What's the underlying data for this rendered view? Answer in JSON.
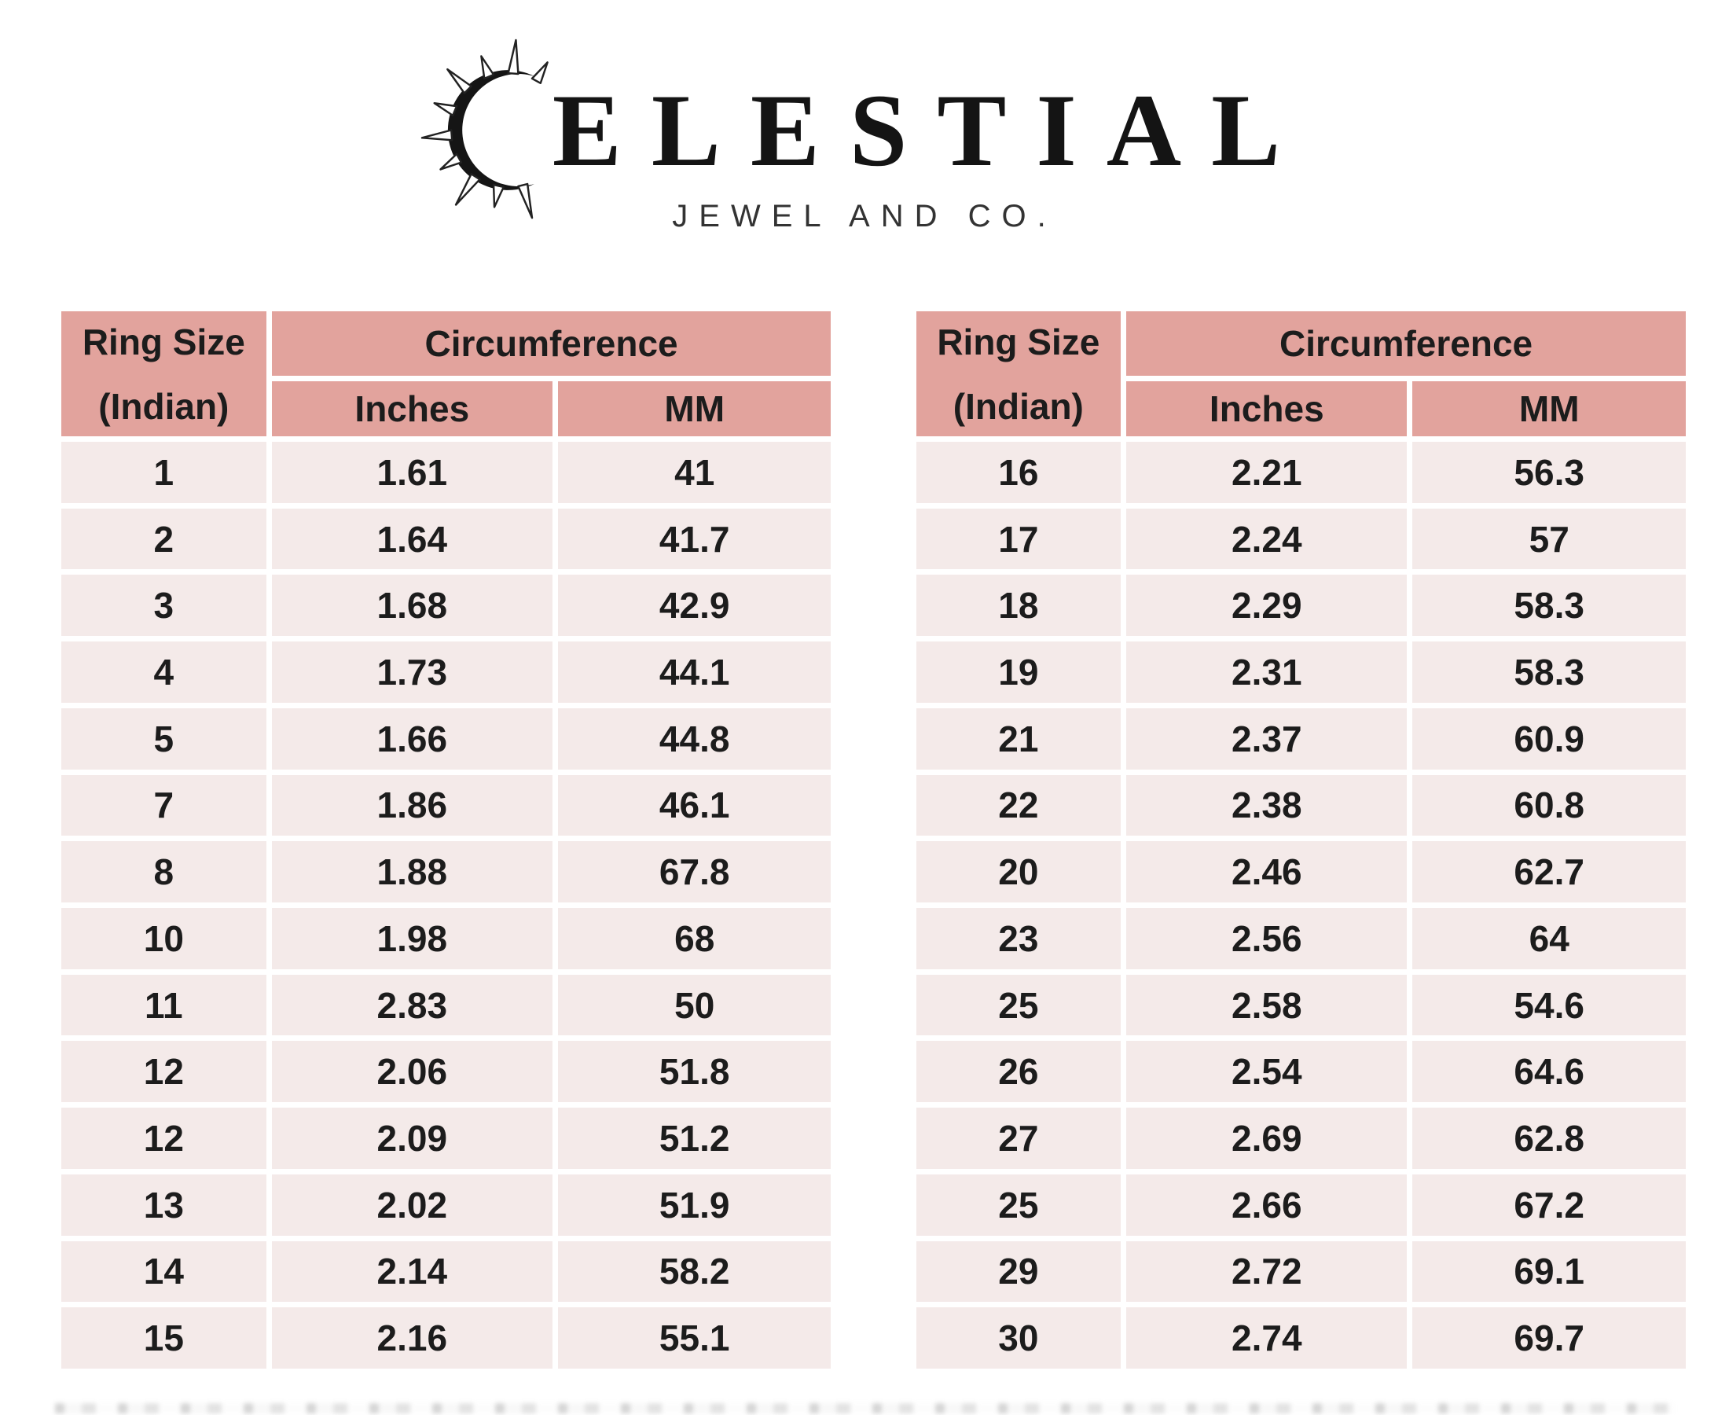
{
  "brand": {
    "name_initial_glyph": "crescent-sun (stylized C)",
    "name_rest": "ELESTIAL",
    "subtitle": "JEWEL AND CO."
  },
  "headers": {
    "ring_size_line1": "Ring Size",
    "ring_size_line2": "(Indian)",
    "circumference": "Circumference",
    "inches": "Inches",
    "mm": "MM"
  },
  "left_table": {
    "rows": [
      [
        "1",
        "1.61",
        "41"
      ],
      [
        "2",
        "1.64",
        "41.7"
      ],
      [
        "3",
        "1.68",
        "42.9"
      ],
      [
        "4",
        "1.73",
        "44.1"
      ],
      [
        "5",
        "1.66",
        "44.8"
      ],
      [
        "7",
        "1.86",
        "46.1"
      ],
      [
        "8",
        "1.88",
        "67.8"
      ],
      [
        "10",
        "1.98",
        "68"
      ],
      [
        "11",
        "2.83",
        "50"
      ],
      [
        "12",
        "2.06",
        "51.8"
      ],
      [
        "12",
        "2.09",
        "51.2"
      ],
      [
        "13",
        "2.02",
        "51.9"
      ],
      [
        "14",
        "2.14",
        "58.2"
      ],
      [
        "15",
        "2.16",
        "55.1"
      ]
    ]
  },
  "right_table": {
    "rows": [
      [
        "16",
        "2.21",
        "56.3"
      ],
      [
        "17",
        "2.24",
        "57"
      ],
      [
        "18",
        "2.29",
        "58.3"
      ],
      [
        "19",
        "2.31",
        "58.3"
      ],
      [
        "21",
        "2.37",
        "60.9"
      ],
      [
        "22",
        "2.38",
        "60.8"
      ],
      [
        "20",
        "2.46",
        "62.7"
      ],
      [
        "23",
        "2.56",
        "64"
      ],
      [
        "25",
        "2.58",
        "54.6"
      ],
      [
        "26",
        "2.54",
        "64.6"
      ],
      [
        "27",
        "2.69",
        "62.8"
      ],
      [
        "25",
        "2.66",
        "67.2"
      ],
      [
        "29",
        "2.72",
        "69.1"
      ],
      [
        "30",
        "2.74",
        "69.7"
      ]
    ]
  },
  "colors": {
    "header_bg": "#e2a39d",
    "row_bg": "#f4eae9",
    "text": "#1c1c1c",
    "page_bg": "#ffffff"
  }
}
